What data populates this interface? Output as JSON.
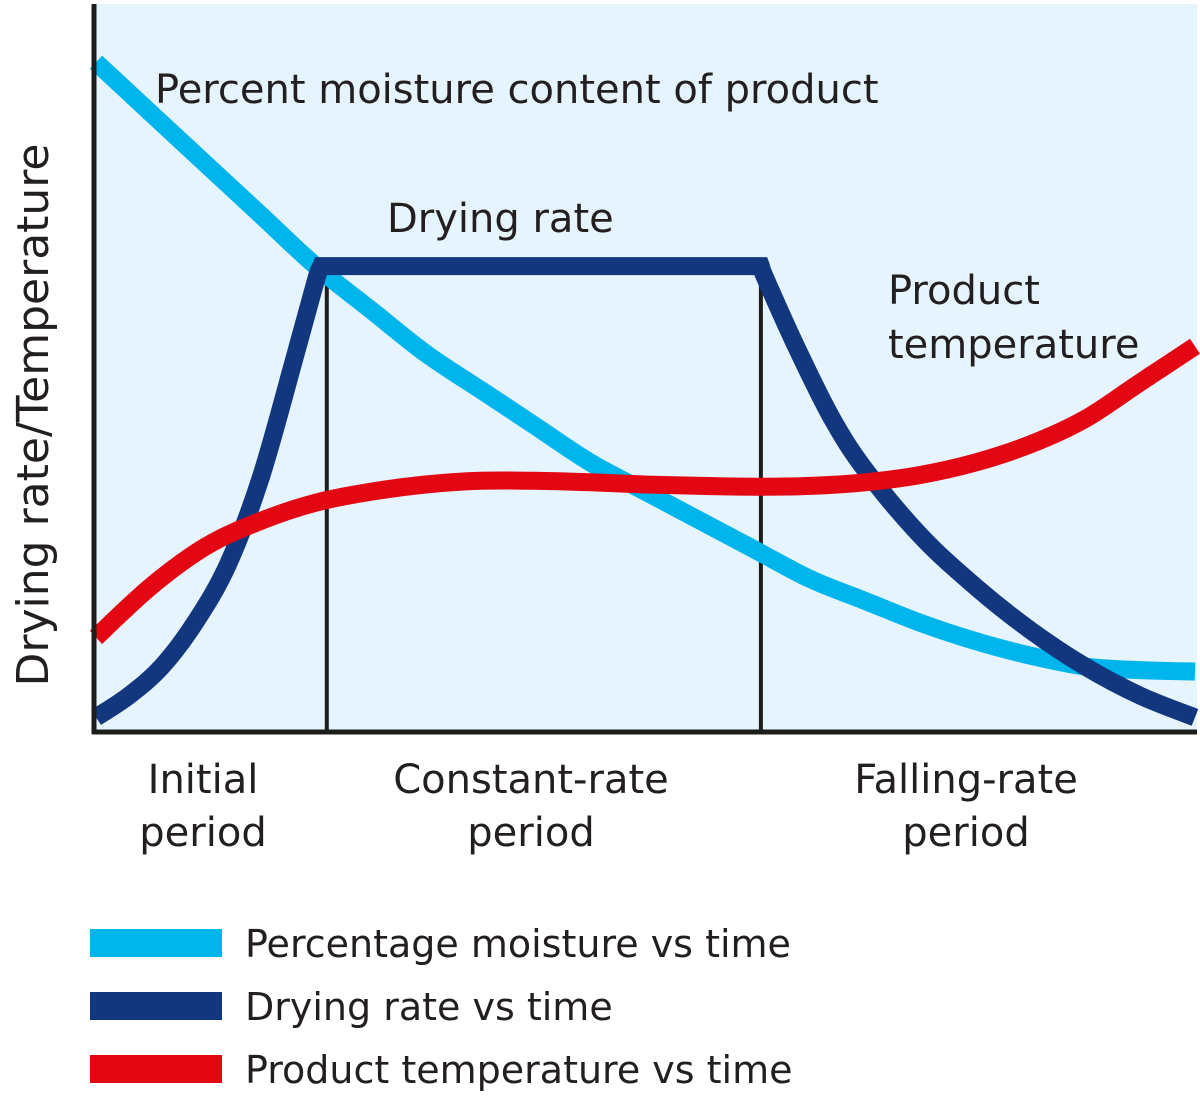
{
  "chart_data": {
    "type": "line",
    "title": "",
    "xlabel": "",
    "ylabel": "Drying rate/Temperature",
    "xlim": [
      0,
      100
    ],
    "ylim": [
      0,
      100
    ],
    "grid": false,
    "legend": "bottom-left",
    "periods": [
      {
        "line1": "Initial",
        "line2": "period",
        "start": 0,
        "end": 21
      },
      {
        "line1": "Constant-rate",
        "line2": "period",
        "start": 21,
        "end": 60.5
      },
      {
        "line1": "Falling-rate",
        "line2": "period",
        "start": 60.5,
        "end": 100
      }
    ],
    "annotations": {
      "moisture": "Percent moisture content of product",
      "drying_rate": "Drying rate",
      "temperature_line1": "Product",
      "temperature_line2": "temperature"
    },
    "series": [
      {
        "name": "Percentage moisture vs time",
        "color": "#00b5ec",
        "x": [
          0,
          5,
          10,
          15,
          20,
          25,
          30,
          35,
          40,
          45,
          50,
          55,
          60,
          65,
          70,
          75,
          80,
          85,
          90,
          95,
          100
        ],
        "y": [
          92,
          85,
          78,
          71,
          64,
          58,
          52,
          47,
          42,
          37,
          33,
          29,
          25,
          21,
          18,
          15,
          12.5,
          10.5,
          9,
          8.5,
          8.3
        ]
      },
      {
        "name": "Drying rate vs time",
        "color": "#13377f",
        "x": [
          0,
          3,
          6,
          9,
          12,
          15,
          18,
          20,
          20.5,
          30,
          40,
          50,
          60.5,
          61,
          64,
          67,
          70,
          75,
          80,
          85,
          90,
          95,
          100
        ],
        "y": [
          2,
          5,
          9,
          15,
          23,
          35,
          51,
          62,
          64,
          64,
          64,
          64,
          64,
          62,
          52,
          43,
          36,
          27,
          20,
          14,
          9,
          5,
          2
        ]
      },
      {
        "name": "Product temperature vs time",
        "color": "#e30613",
        "x": [
          0,
          5,
          10,
          15,
          20,
          25,
          30,
          35,
          40,
          45,
          50,
          55,
          60,
          65,
          70,
          75,
          80,
          85,
          90,
          95,
          100
        ],
        "y": [
          13,
          20,
          25.5,
          29,
          31.5,
          33,
          34,
          34.5,
          34.5,
          34.3,
          34,
          33.8,
          33.7,
          33.8,
          34.3,
          35.3,
          37,
          39.5,
          43,
          48,
          53
        ]
      }
    ]
  }
}
